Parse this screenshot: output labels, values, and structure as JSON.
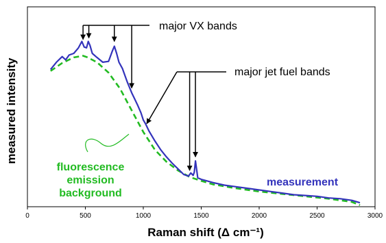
{
  "chart_data": {
    "type": "line",
    "xlabel": "Raman shift (Δ cm⁻¹)",
    "ylabel": "measured intensity",
    "xlim": [
      0,
      3000
    ],
    "ylim": [
      0,
      100
    ],
    "x_ticks": [
      0,
      500,
      1000,
      1500,
      2000,
      2500,
      3000
    ],
    "y_ticks_shown": false,
    "grid": false,
    "colors": {
      "measurement": "#3333bb",
      "background": "#22bb22",
      "axis": "#000000"
    },
    "series": [
      {
        "name": "measurement",
        "label_text": "measurement",
        "style": "solid",
        "x": [
          200,
          250,
          300,
          330,
          360,
          400,
          440,
          470,
          490,
          510,
          525,
          540,
          560,
          600,
          650,
          700,
          730,
          750,
          770,
          790,
          820,
          860,
          900,
          920,
          950,
          980,
          1000,
          1020,
          1050,
          1100,
          1150,
          1200,
          1250,
          1300,
          1350,
          1390,
          1410,
          1430,
          1440,
          1450,
          1460,
          1470,
          1500,
          1550,
          1600,
          1700,
          1800,
          1900,
          2000,
          2100,
          2200,
          2300,
          2400,
          2500,
          2600,
          2700,
          2800,
          2870
        ],
        "y": [
          68.7,
          72.3,
          75.1,
          73.5,
          75.9,
          76.7,
          79.5,
          82.7,
          79.9,
          79.5,
          82.7,
          80.7,
          76.7,
          74.7,
          72.3,
          72.7,
          77.5,
          80.3,
          76.7,
          72.3,
          69.1,
          62.7,
          57.0,
          54.6,
          51.0,
          47.0,
          43.4,
          41.4,
          37.8,
          32.9,
          28.5,
          24.9,
          21.7,
          18.9,
          16.1,
          15.3,
          16.9,
          15.7,
          17.3,
          22.9,
          18.9,
          14.5,
          13.7,
          12.9,
          12.1,
          10.8,
          10.0,
          9.2,
          8.4,
          7.6,
          6.8,
          6.0,
          5.6,
          5.2,
          4.4,
          4.0,
          3.2,
          2.0
        ]
      },
      {
        "name": "fluorescence emission background",
        "label_lines": [
          "fluorescence",
          "emission",
          "background"
        ],
        "style": "dashed",
        "x": [
          200,
          300,
          400,
          480,
          520,
          600,
          700,
          800,
          900,
          1000,
          1100,
          1200,
          1300,
          1400,
          1500,
          1600,
          1800,
          2000,
          2200,
          2400,
          2600,
          2800,
          2870
        ],
        "y": [
          67.9,
          71.9,
          74.7,
          75.5,
          74.7,
          72.3,
          67.1,
          59.0,
          48.2,
          37.4,
          28.5,
          22.5,
          18.1,
          14.9,
          12.9,
          11.2,
          9.2,
          7.6,
          6.4,
          5.2,
          4.0,
          2.4,
          0.8
        ]
      }
    ],
    "annotations": [
      {
        "text": "major VX bands",
        "arrows_to_x": [
          480,
          530,
          750,
          900
        ]
      },
      {
        "text": "major jet fuel bands",
        "arrows_to_x": [
          1400,
          1450
        ]
      }
    ]
  }
}
